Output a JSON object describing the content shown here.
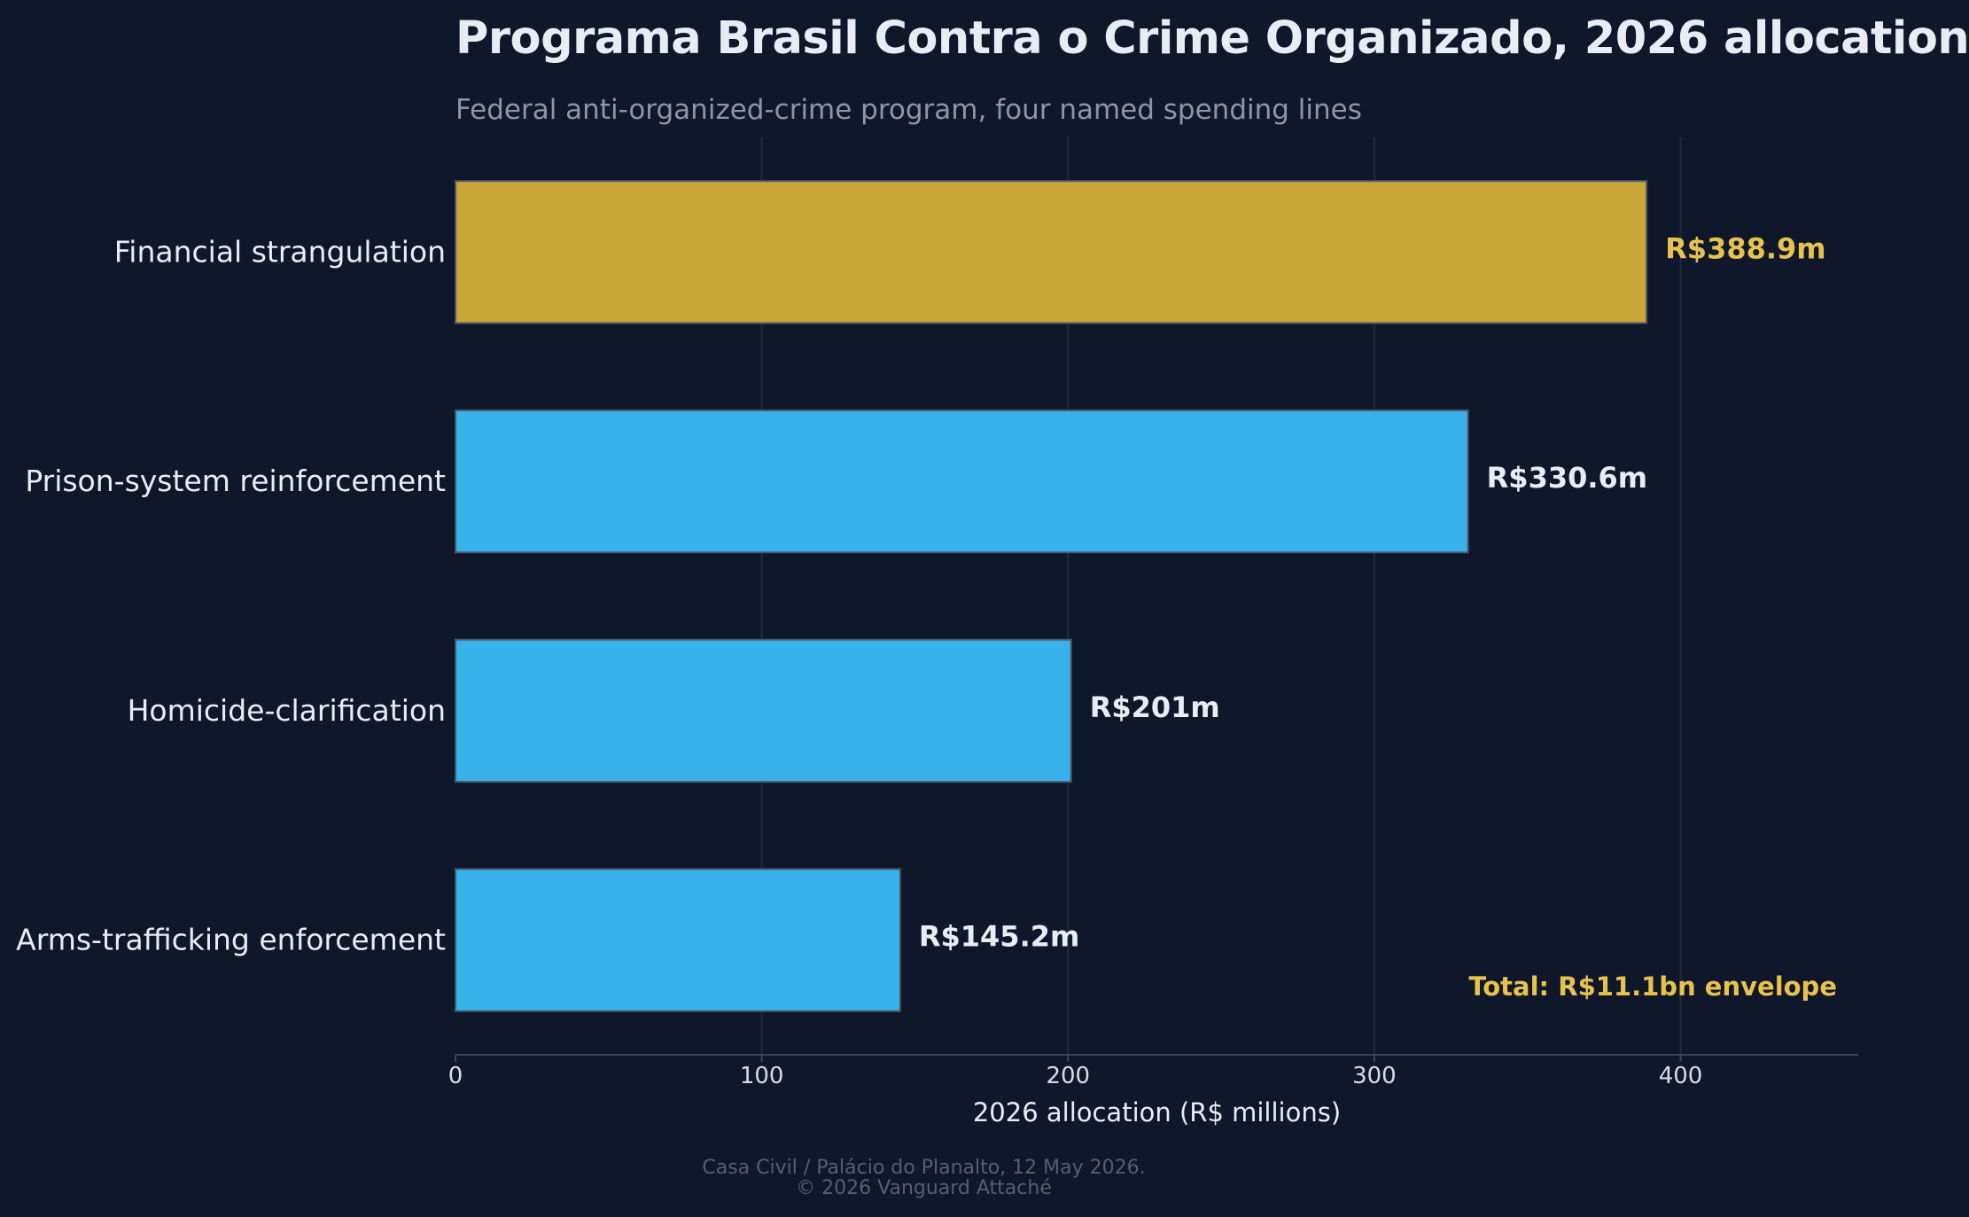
{
  "header": {
    "title": "Programa Brasil Contra o Crime Organizado, 2026 allocation",
    "subtitle": "Federal anti-organized-crime program, four named spending lines"
  },
  "chart_data": {
    "type": "bar",
    "orientation": "horizontal",
    "categories": [
      "Financial strangulation",
      "Prison-system reinforcement",
      "Homicide-clarification",
      "Arms-trafficking enforcement"
    ],
    "values": [
      388.9,
      330.6,
      201,
      145.2
    ],
    "value_labels": [
      "R$388.9m",
      "R$330.6m",
      "R$201m",
      "R$145.2m"
    ],
    "highlight_index": 0,
    "xlabel": "2026 allocation (R$ millions)",
    "ylabel": "",
    "xlim": [
      0,
      458
    ],
    "xticks": [
      0,
      100,
      200,
      300,
      400
    ],
    "grid": true,
    "annotation": "Total: R$11.1bn envelope",
    "colors": {
      "highlight": "#c9a538",
      "bar": "#38b2eb",
      "highlight_label": "#e8c24e",
      "label": "#e8edf5",
      "annotation": "#e8c24e",
      "grid": "#1f2a3f",
      "axis": "#3a4456"
    }
  },
  "footer": {
    "source": "Casa Civil / Palácio do Planalto, 12 May 2026.",
    "copyright": "© 2026 Vanguard Attaché"
  }
}
